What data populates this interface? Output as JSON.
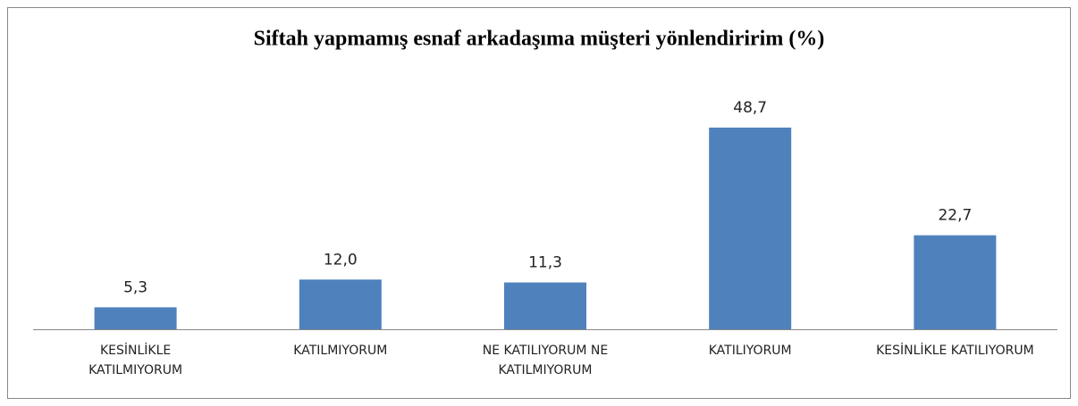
{
  "chart_data": {
    "type": "bar",
    "title": "Siftah yapmamış esnaf arkadaşıma müşteri yönlendiririm (%)",
    "categories": [
      "KESİNLİKLE KATILMIYORUM",
      "KATILMIYORUM",
      "NE KATILIYORUM NE KATILMIYORUM",
      "KATILIYORUM",
      "KESİNLİKLE KATILIYORUM"
    ],
    "values": [
      5.3,
      12.0,
      11.3,
      48.7,
      22.7
    ],
    "value_labels": [
      "5,3",
      "12,0",
      "11,3",
      "48,7",
      "22,7"
    ],
    "color": "#4f81bd"
  }
}
